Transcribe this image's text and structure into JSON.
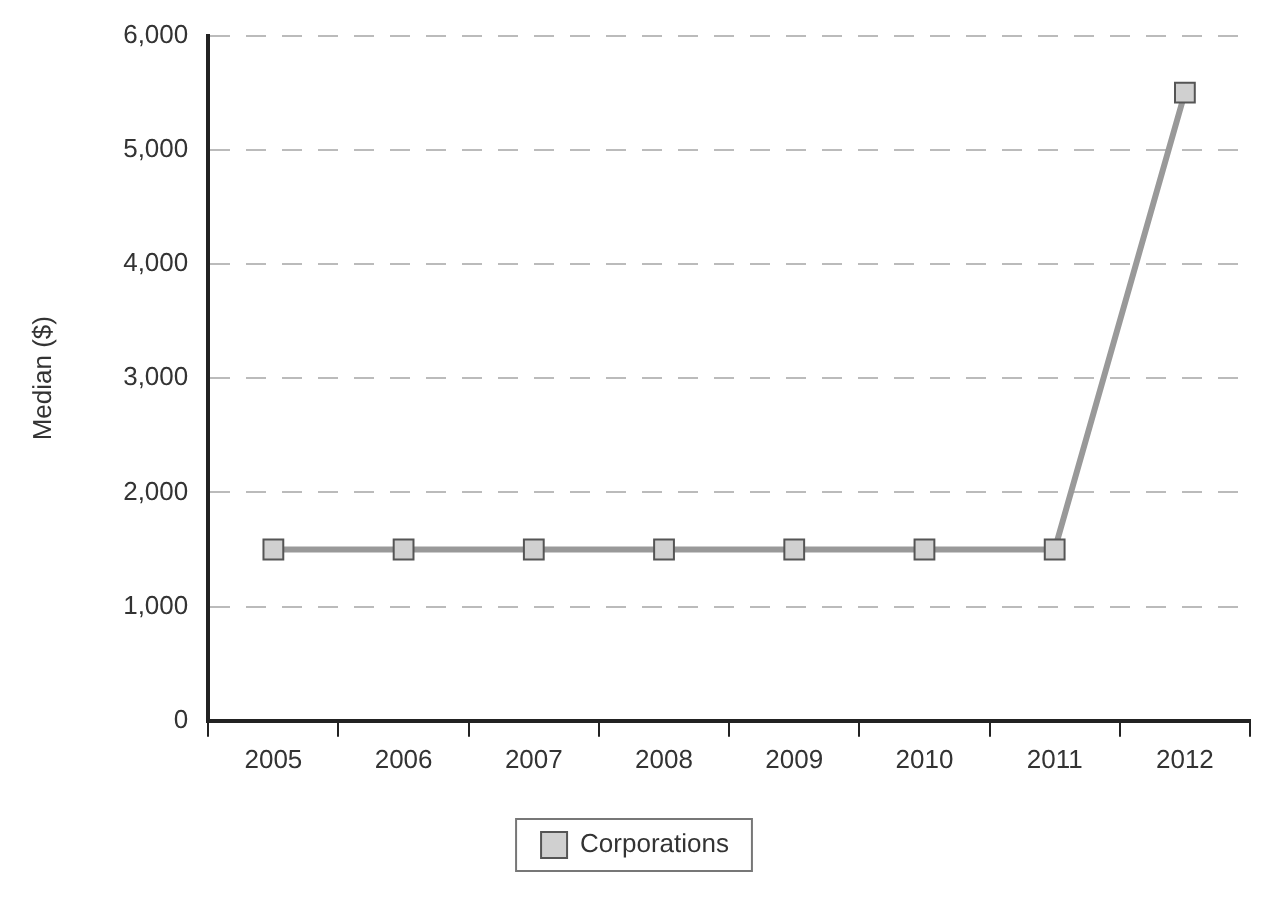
{
  "chart_data": {
    "type": "line",
    "ylabel": "Median ($)",
    "categories": [
      "2005",
      "2006",
      "2007",
      "2008",
      "2009",
      "2010",
      "2011",
      "2012"
    ],
    "series": [
      {
        "name": "Corporations",
        "color": "#999999",
        "values": [
          1500,
          1500,
          1500,
          1500,
          1500,
          1500,
          1500,
          5500
        ]
      }
    ],
    "ylim": [
      0,
      6000
    ],
    "yticks": [
      {
        "value": 0,
        "label": "0"
      },
      {
        "value": 1000,
        "label": "1,000"
      },
      {
        "value": 2000,
        "label": "2,000"
      },
      {
        "value": 3000,
        "label": "3,000"
      },
      {
        "value": 4000,
        "label": "4,000"
      },
      {
        "value": 5000,
        "label": "5,000"
      },
      {
        "value": 6000,
        "label": "6,000"
      }
    ],
    "grid": "y",
    "legend": "bottom",
    "marker": "square",
    "line_style": "solid"
  }
}
